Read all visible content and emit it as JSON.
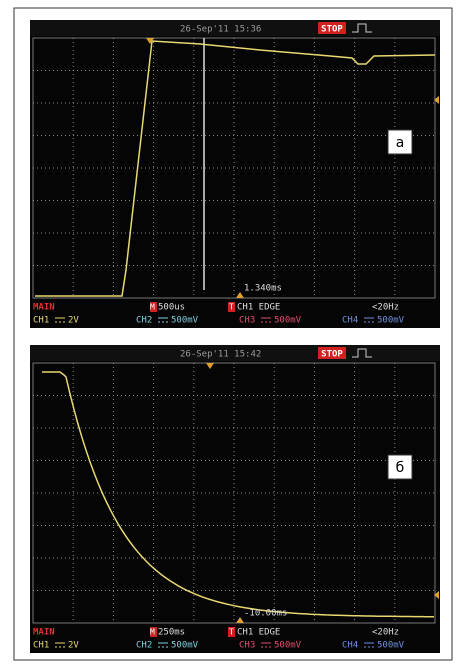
{
  "panels": [
    {
      "label": "а",
      "header": {
        "date": "26-Sep'11 15:36",
        "status": "STOP"
      },
      "cursor": "1.340ms",
      "footer": {
        "mode": "MAIN",
        "timebase_marker": "M",
        "timebase": "500us",
        "trigger_marker": "T",
        "trigger": "CH1 EDGE",
        "frequency": "<20Hz",
        "channels": [
          {
            "name": "CH1",
            "scale": "2V"
          },
          {
            "name": "CH2",
            "scale": "500mV"
          },
          {
            "name": "CH3",
            "scale": "500mV"
          },
          {
            "name": "CH4",
            "scale": "500mV"
          }
        ]
      }
    },
    {
      "label": "б",
      "header": {
        "date": "26-Sep'11 15:42",
        "status": "STOP"
      },
      "cursor": "-10.00ms",
      "footer": {
        "mode": "MAIN",
        "timebase_marker": "M",
        "timebase": "250ms",
        "trigger_marker": "T",
        "trigger": "CH1 EDGE",
        "frequency": "<20Hz",
        "channels": [
          {
            "name": "CH1",
            "scale": "2V"
          },
          {
            "name": "CH2",
            "scale": "500mV"
          },
          {
            "name": "CH3",
            "scale": "500mV"
          },
          {
            "name": "CH4",
            "scale": "500mV"
          }
        ]
      }
    }
  ]
}
